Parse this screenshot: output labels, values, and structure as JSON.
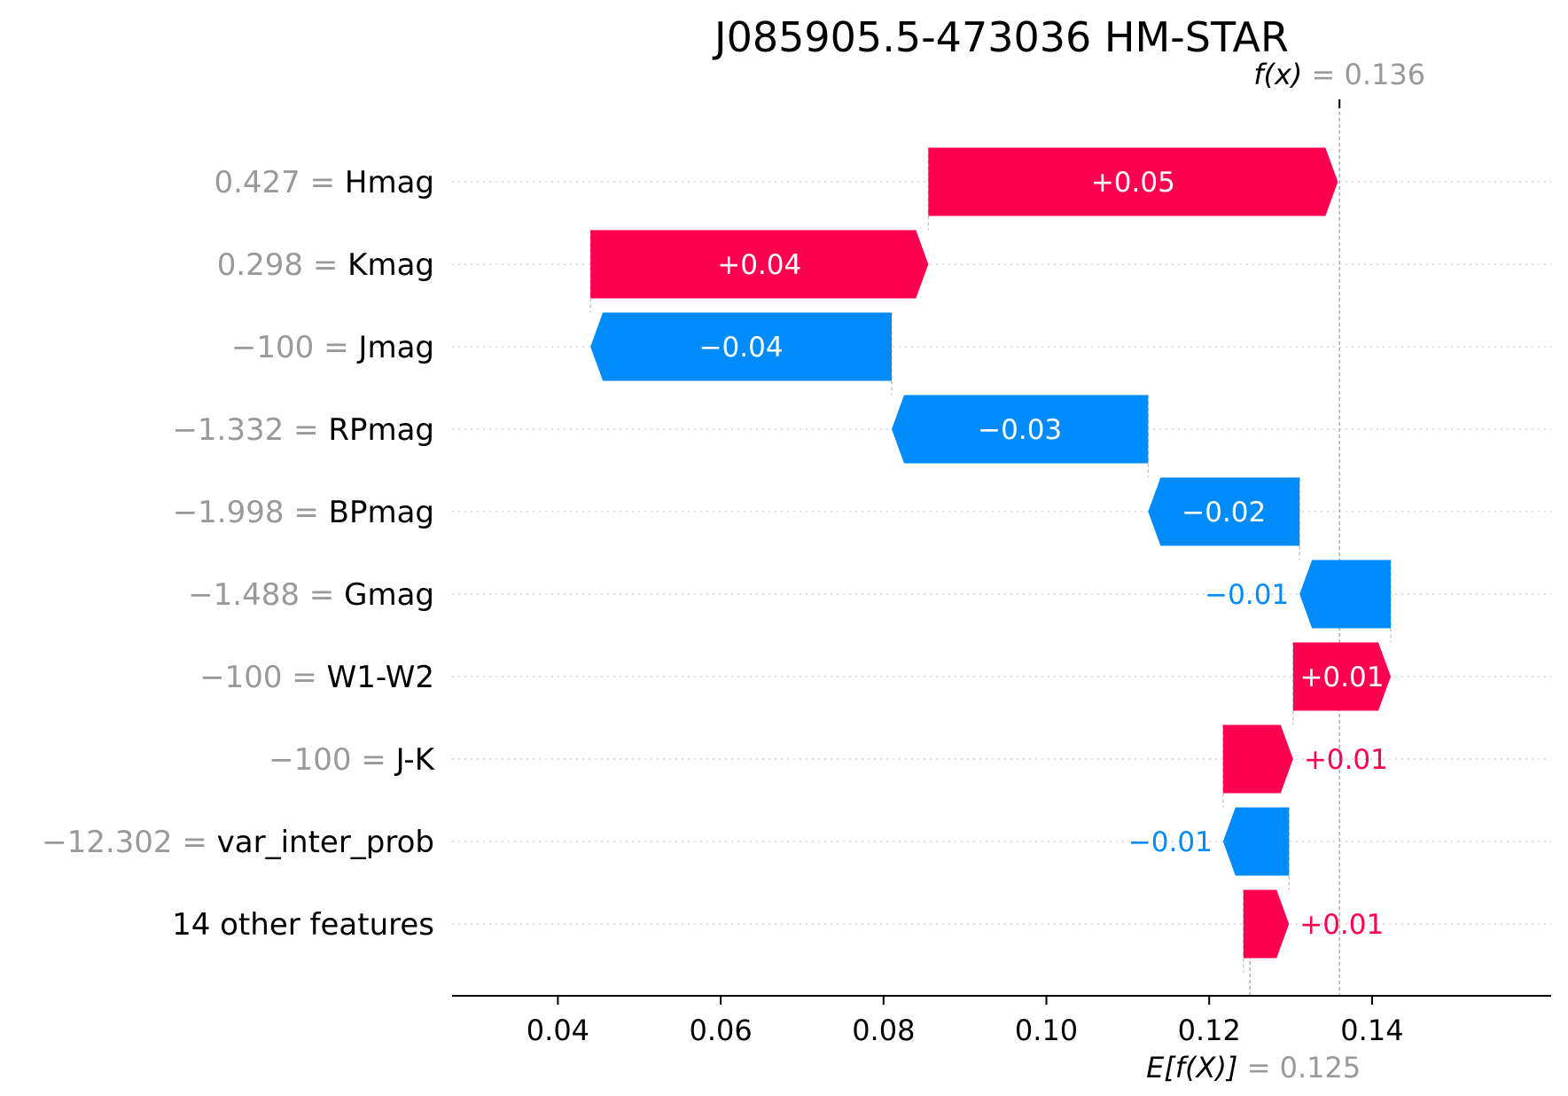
{
  "colors": {
    "positive": "#ff0051",
    "negative": "#008bfb",
    "grey_text": "#999999",
    "gridline": "#cccccc"
  },
  "chart_data": {
    "type": "bar",
    "subtype": "waterfall",
    "title": "J085905.5-473036 HM-STAR",
    "xlabel": "",
    "ylabel": "",
    "xlim": [
      0.027,
      0.162
    ],
    "x_ticks": [
      0.04,
      0.06,
      0.08,
      0.1,
      0.12,
      0.14
    ],
    "x_tick_labels": [
      "0.04",
      "0.06",
      "0.08",
      "0.10",
      "0.12",
      "0.14"
    ],
    "grid": "horizontal dotted",
    "fx": {
      "label": "f(x)",
      "value_text": "= 0.136",
      "value": 0.136
    },
    "expected": {
      "label": "E[f(X)]",
      "value_text": "= 0.125",
      "value": 0.125
    },
    "features": [
      {
        "value_text": "0.427",
        "name": "Hmag",
        "start": 0.0855,
        "end": 0.1358,
        "label": "+0.05"
      },
      {
        "value_text": "0.298",
        "name": "Kmag",
        "start": 0.044,
        "end": 0.0855,
        "label": "+0.04"
      },
      {
        "value_text": "−100",
        "name": "Jmag",
        "start": 0.081,
        "end": 0.044,
        "label": "−0.04"
      },
      {
        "value_text": "−1.332",
        "name": "RPmag",
        "start": 0.1125,
        "end": 0.081,
        "label": "−0.03"
      },
      {
        "value_text": "−1.998",
        "name": "BPmag",
        "start": 0.1311,
        "end": 0.1125,
        "label": "−0.02"
      },
      {
        "value_text": "−1.488",
        "name": "Gmag",
        "start": 0.1423,
        "end": 0.1311,
        "label": "−0.01"
      },
      {
        "value_text": "−100",
        "name": "W1-W2",
        "start": 0.1303,
        "end": 0.1423,
        "label": "+0.01"
      },
      {
        "value_text": "−100",
        "name": "J-K",
        "start": 0.1217,
        "end": 0.1303,
        "label": "+0.01"
      },
      {
        "value_text": "−12.302",
        "name": "var_inter_prob",
        "start": 0.1298,
        "end": 0.1217,
        "label": "−0.01"
      },
      {
        "value_text": "",
        "name": "14 other features",
        "start": 0.1242,
        "end": 0.1298,
        "label": "+0.01"
      }
    ]
  }
}
